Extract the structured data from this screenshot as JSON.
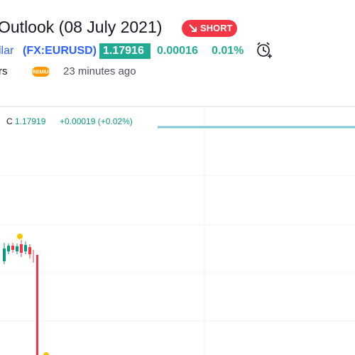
{
  "header": {
    "title": "Outlook (08 July 2021)",
    "badge": "SHORT"
  },
  "symbol": {
    "name_fragment": "llar",
    "ticker": "(FX:EURUSD)",
    "price": "1.17916",
    "change": "0.00016",
    "change_percent": "0.01%"
  },
  "author": {
    "name_fragment": "rs",
    "badge": "PREMIUM",
    "time": "23 minutes ago"
  },
  "chart": {
    "legend": {
      "close_label": "C",
      "close_value": "1.17919",
      "change": "+0.00019 (+0.02%)"
    }
  }
}
